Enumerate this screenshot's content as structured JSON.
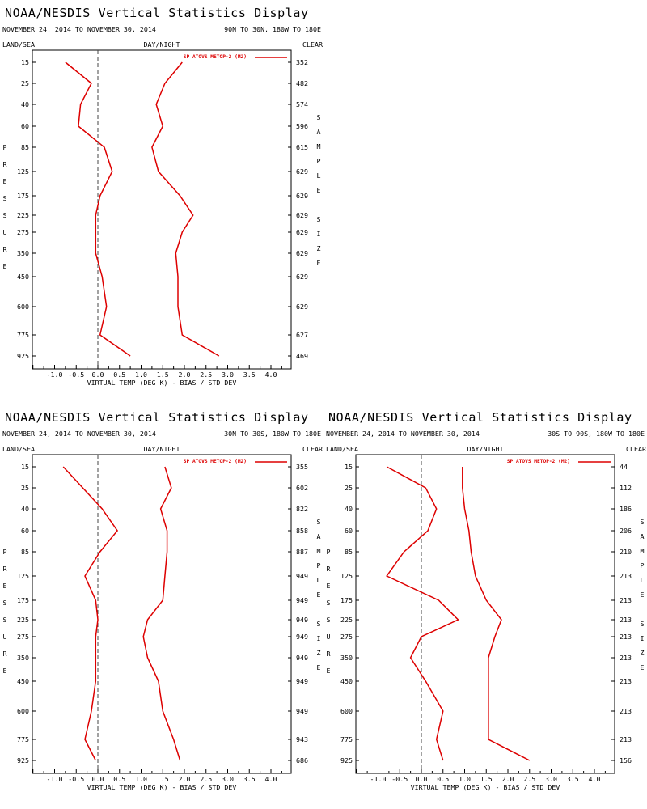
{
  "page": {
    "title": "NOAA/NESDIS Vertical Statistics Display",
    "date_range": "NOVEMBER 24, 2014 TO NOVEMBER 30, 2014",
    "label_landsea": "LAND/SEA",
    "label_daynight": "DAY/NIGHT",
    "label_clear": "CLEAR",
    "left_axis_title": "PRESSURE",
    "right_axis_title": "SAMPLE SIZE",
    "legend_label": "SP ATOVS METOP-2 (M2)",
    "xlabel": "VIRTUAL TEMP (DEG K) - BIAS / STD DEV"
  },
  "colors": {
    "series": "#dd0000",
    "axis": "#000000",
    "zero_line": "#444444"
  },
  "chart_data": [
    {
      "type": "line",
      "region": "90N TO 30N, 180W TO 180E",
      "xlim": [
        -1.5,
        4.5
      ],
      "xticks": [
        "-1.0",
        "-0.5",
        "0.0",
        "0.5",
        "1.0",
        "1.5",
        "2.0",
        "2.5",
        "3.0",
        "3.5",
        "4.0"
      ],
      "pressure_levels": [
        "15",
        "25",
        "40",
        "60",
        "85",
        "125",
        "175",
        "225",
        "275",
        "350",
        "450",
        "600",
        "775",
        "925"
      ],
      "sample_size": [
        "352",
        "482",
        "574",
        "596",
        "615",
        "629",
        "629",
        "629",
        "629",
        "629",
        "629",
        "629",
        "627",
        "469"
      ],
      "series": [
        {
          "name": "SP ATOVS METOP-2 (M2)",
          "stat": "bias",
          "values": [
            -0.75,
            -0.15,
            -0.4,
            -0.45,
            0.15,
            0.33,
            0.05,
            -0.05,
            -0.05,
            -0.05,
            0.1,
            0.2,
            0.05,
            0.75
          ]
        },
        {
          "name": "SP ATOVS METOP-2 (M2)",
          "stat": "std_dev",
          "values": [
            1.95,
            1.55,
            1.35,
            1.5,
            1.25,
            1.4,
            1.9,
            2.2,
            1.95,
            1.8,
            1.85,
            1.85,
            1.95,
            2.8
          ]
        }
      ]
    },
    {
      "type": "line",
      "region": "30N TO 30S, 180W TO 180E",
      "xlim": [
        -1.5,
        4.5
      ],
      "xticks": [
        "-1.0",
        "-0.5",
        "0.0",
        "0.5",
        "1.0",
        "1.5",
        "2.0",
        "2.5",
        "3.0",
        "3.5",
        "4.0"
      ],
      "pressure_levels": [
        "15",
        "25",
        "40",
        "60",
        "85",
        "125",
        "175",
        "225",
        "275",
        "350",
        "450",
        "600",
        "775",
        "925"
      ],
      "sample_size": [
        "355",
        "602",
        "822",
        "858",
        "887",
        "949",
        "949",
        "949",
        "949",
        "949",
        "949",
        "949",
        "943",
        "686"
      ],
      "series": [
        {
          "name": "SP ATOVS METOP-2 (M2)",
          "stat": "bias",
          "values": [
            -0.8,
            -0.35,
            0.1,
            0.45,
            0.05,
            -0.3,
            -0.05,
            0.0,
            -0.05,
            -0.05,
            -0.05,
            -0.15,
            -0.3,
            -0.05
          ]
        },
        {
          "name": "SP ATOVS METOP-2 (M2)",
          "stat": "std_dev",
          "values": [
            1.55,
            1.7,
            1.45,
            1.6,
            1.6,
            1.55,
            1.5,
            1.15,
            1.05,
            1.15,
            1.4,
            1.5,
            1.75,
            1.9
          ]
        }
      ]
    },
    {
      "type": "line",
      "region": "30S TO 90S, 180W TO 180E",
      "xlim": [
        -1.5,
        4.5
      ],
      "xticks": [
        "-1.0",
        "-0.5",
        "0.0",
        "0.5",
        "1.0",
        "1.5",
        "2.0",
        "2.5",
        "3.0",
        "3.5",
        "4.0"
      ],
      "pressure_levels": [
        "15",
        "25",
        "40",
        "60",
        "85",
        "125",
        "175",
        "225",
        "275",
        "350",
        "450",
        "600",
        "775",
        "925"
      ],
      "sample_size": [
        "44",
        "112",
        "186",
        "206",
        "210",
        "213",
        "213",
        "213",
        "213",
        "213",
        "213",
        "213",
        "213",
        "156"
      ],
      "series": [
        {
          "name": "SP ATOVS METOP-2 (M2)",
          "stat": "bias",
          "values": [
            -0.8,
            0.1,
            0.35,
            0.15,
            -0.4,
            -0.8,
            0.4,
            0.85,
            0.0,
            -0.25,
            0.1,
            0.5,
            0.35,
            0.5
          ]
        },
        {
          "name": "SP ATOVS METOP-2 (M2)",
          "stat": "std_dev",
          "values": [
            0.95,
            0.95,
            1.0,
            1.1,
            1.15,
            1.25,
            1.5,
            1.85,
            1.7,
            1.55,
            1.55,
            1.55,
            1.55,
            2.5
          ]
        }
      ]
    }
  ]
}
